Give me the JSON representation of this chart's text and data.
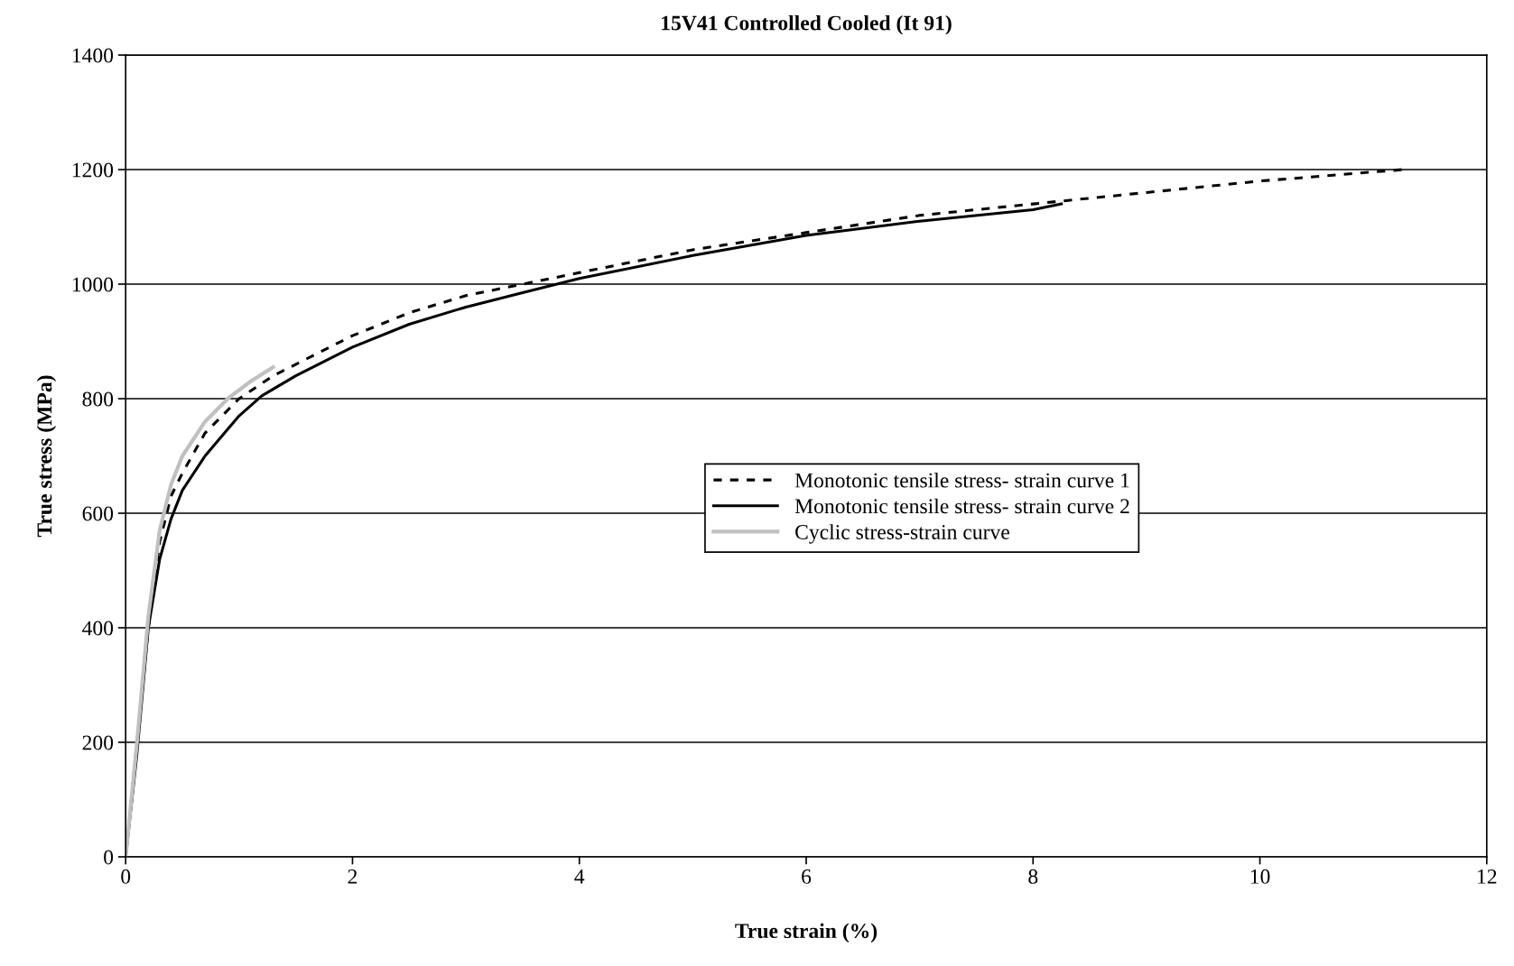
{
  "chart_data": {
    "type": "line",
    "title": "15V41 Controlled Cooled (It 91)",
    "xlabel": "True strain (%)",
    "ylabel": "True stress (MPa)",
    "xlim": [
      0,
      12
    ],
    "xticks": [
      0,
      2,
      4,
      6,
      8,
      10,
      12
    ],
    "ylim": [
      0,
      1400
    ],
    "yticks": [
      0,
      200,
      400,
      600,
      800,
      1000,
      1200,
      1400
    ],
    "grid": "y",
    "legend": "center",
    "marker": "none",
    "series": [
      {
        "name": "Monotonic tensile stress- strain curve 1",
        "color": "#000000",
        "line_style": "dashed",
        "x": [
          0,
          0.1,
          0.2,
          0.3,
          0.4,
          0.5,
          0.7,
          1.0,
          1.3,
          1.7,
          2,
          2.5,
          3,
          3.5,
          4,
          5,
          6,
          7,
          8,
          9,
          10,
          11.26
        ],
        "values": [
          0,
          200,
          400,
          550,
          630,
          670,
          740,
          800,
          840,
          880,
          910,
          950,
          980,
          1000,
          1020,
          1060,
          1090,
          1120,
          1140,
          1160,
          1180,
          1200
        ]
      },
      {
        "name": "Monotonic tensile stress- strain curve 2",
        "color": "#000000",
        "line_style": "solid",
        "x": [
          0,
          0.1,
          0.2,
          0.3,
          0.4,
          0.5,
          0.7,
          1.0,
          1.2,
          1.5,
          2,
          2.5,
          3,
          3.5,
          4,
          5,
          6,
          7,
          8,
          8.25
        ],
        "values": [
          0,
          180,
          400,
          520,
          590,
          640,
          700,
          770,
          805,
          840,
          890,
          930,
          960,
          985,
          1010,
          1050,
          1085,
          1110,
          1130,
          1140
        ]
      },
      {
        "name": "Cyclic stress-strain curve",
        "color": "#c0c0c0",
        "line_style": "solid",
        "x": [
          0,
          0.1,
          0.2,
          0.3,
          0.4,
          0.5,
          0.7,
          0.9,
          1.1,
          1.3
        ],
        "values": [
          0,
          200,
          420,
          570,
          650,
          700,
          760,
          800,
          830,
          855
        ]
      }
    ]
  }
}
